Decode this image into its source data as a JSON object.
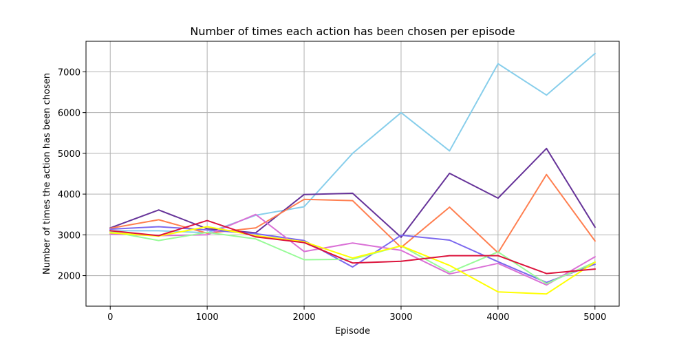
{
  "chart_data": {
    "type": "line",
    "title": "Number of times each action has been chosen per episode",
    "xlabel": "Episode",
    "ylabel": "Number of times the action has been chosen",
    "x": [
      0,
      500,
      1000,
      1500,
      2000,
      2500,
      3000,
      3500,
      4000,
      4500,
      5000
    ],
    "xlim": [
      -250,
      5250
    ],
    "ylim": [
      1250,
      7750
    ],
    "xticks": [
      0,
      1000,
      2000,
      3000,
      4000,
      5000
    ],
    "yticks": [
      2000,
      3000,
      4000,
      5000,
      6000,
      7000
    ],
    "grid": true,
    "legend": "none",
    "series": [
      {
        "color": "#87ceeb",
        "values": [
          3100,
          3100,
          3050,
          3480,
          3690,
          5000,
          6000,
          5060,
          7200,
          6430,
          7450
        ]
      },
      {
        "color": "#663399",
        "values": [
          3170,
          3610,
          3150,
          3050,
          3990,
          4020,
          2940,
          4510,
          3900,
          5120,
          3190
        ]
      },
      {
        "color": "#ff7f50",
        "values": [
          3160,
          3370,
          3040,
          3170,
          3870,
          3840,
          2690,
          3680,
          2560,
          4480,
          2850
        ]
      },
      {
        "color": "#7b68ee",
        "values": [
          3140,
          3200,
          3120,
          3030,
          2860,
          2210,
          2990,
          2870,
          2340,
          1830,
          2280
        ]
      },
      {
        "color": "#da70d6",
        "values": [
          3020,
          2980,
          3000,
          3500,
          2590,
          2800,
          2620,
          2040,
          2300,
          1770,
          2460
        ]
      },
      {
        "color": "#98fb98",
        "values": [
          3080,
          2860,
          3060,
          2900,
          2390,
          2400,
          2730,
          2080,
          2580,
          1800,
          2330
        ]
      },
      {
        "color": "#ffff00",
        "values": [
          3050,
          2970,
          3200,
          2980,
          2830,
          2430,
          2730,
          2250,
          1600,
          1550,
          2330
        ]
      },
      {
        "color": "#dc143c",
        "values": [
          3100,
          2980,
          3350,
          2950,
          2810,
          2310,
          2350,
          2490,
          2490,
          2050,
          2160
        ]
      }
    ]
  }
}
